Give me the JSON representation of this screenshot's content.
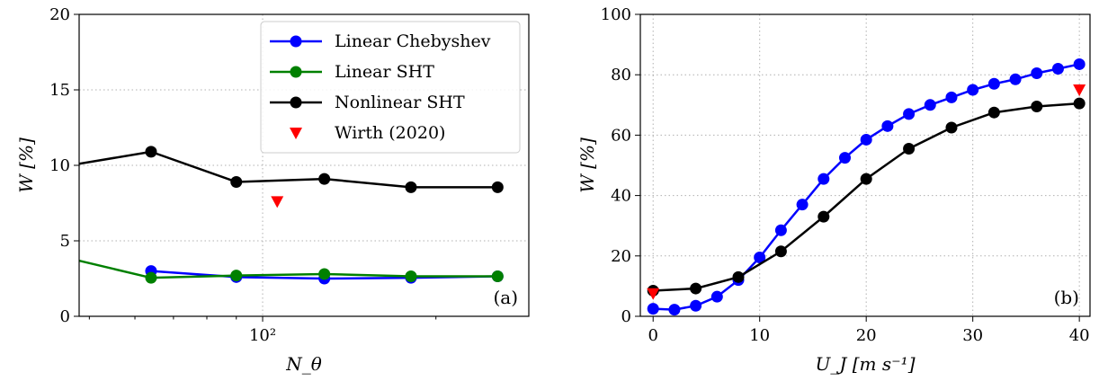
{
  "chart_data": [
    {
      "type": "line",
      "panel_label": "(a)",
      "xlabel": "N_θ",
      "ylabel": "W [%]",
      "xscale": "log",
      "xlim": [
        48,
        290
      ],
      "ylim": [
        0,
        20
      ],
      "yticks": [
        "0",
        "5",
        "10",
        "15",
        "20"
      ],
      "xticks": [
        {
          "value": 100,
          "label": "10²"
        }
      ],
      "grid": true,
      "legend_position": "top-right",
      "series": [
        {
          "name": "Linear Chebyshev",
          "color": "#0000ff",
          "style": "line-marker",
          "points": [
            [
              64,
              3.0
            ],
            [
              90,
              2.6
            ],
            [
              128,
              2.5
            ],
            [
              181,
              2.55
            ],
            [
              256,
              2.65
            ]
          ]
        },
        {
          "name": "Linear SHT",
          "color": "#008000",
          "style": "line-marker",
          "points": [
            [
              40,
              4.4
            ],
            [
              64,
              2.55
            ],
            [
              90,
              2.7
            ],
            [
              128,
              2.8
            ],
            [
              181,
              2.65
            ],
            [
              256,
              2.65
            ]
          ]
        },
        {
          "name": "Nonlinear SHT",
          "color": "#000000",
          "style": "line-marker",
          "points": [
            [
              40,
              9.6
            ],
            [
              64,
              10.9
            ],
            [
              90,
              8.9
            ],
            [
              128,
              9.1
            ],
            [
              181,
              8.55
            ],
            [
              256,
              8.55
            ]
          ]
        },
        {
          "name": "Wirth (2020)",
          "color": "#ff0000",
          "style": "triangle-down",
          "points": [
            [
              106,
              7.6
            ]
          ]
        }
      ]
    },
    {
      "type": "line",
      "panel_label": "(b)",
      "xlabel": "U_J [m s⁻¹]",
      "ylabel": "W [%]",
      "xlim": [
        -1.2,
        41
      ],
      "ylim": [
        0,
        100
      ],
      "xticks": [
        "0",
        "10",
        "20",
        "30",
        "40"
      ],
      "yticks": [
        "0",
        "20",
        "40",
        "60",
        "80",
        "100"
      ],
      "grid": true,
      "series": [
        {
          "name": "Linear Chebyshev",
          "color": "#0000ff",
          "style": "line-marker",
          "points": [
            [
              0,
              2.5
            ],
            [
              2,
              2.2
            ],
            [
              4,
              3.5
            ],
            [
              6,
              6.5
            ],
            [
              8,
              12
            ],
            [
              10,
              19.5
            ],
            [
              12,
              28.5
            ],
            [
              14,
              37
            ],
            [
              16,
              45.5
            ],
            [
              18,
              52.5
            ],
            [
              20,
              58.5
            ],
            [
              22,
              63
            ],
            [
              24,
              67
            ],
            [
              26,
              70
            ],
            [
              28,
              72.5
            ],
            [
              30,
              75
            ],
            [
              32,
              77
            ],
            [
              34,
              78.5
            ],
            [
              36,
              80.5
            ],
            [
              38,
              82
            ],
            [
              40,
              83.5
            ]
          ]
        },
        {
          "name": "Nonlinear SHT",
          "color": "#000000",
          "style": "line-marker",
          "points": [
            [
              0,
              8.5
            ],
            [
              4,
              9.2
            ],
            [
              8,
              13
            ],
            [
              12,
              21.5
            ],
            [
              16,
              33
            ],
            [
              20,
              45.5
            ],
            [
              24,
              55.5
            ],
            [
              28,
              62.5
            ],
            [
              32,
              67.5
            ],
            [
              36,
              69.5
            ],
            [
              40,
              70.5
            ]
          ]
        },
        {
          "name": "Wirth (2020)",
          "color": "#ff0000",
          "style": "triangle-down",
          "points": [
            [
              0,
              7.5
            ],
            [
              40,
              75
            ]
          ]
        }
      ]
    }
  ]
}
